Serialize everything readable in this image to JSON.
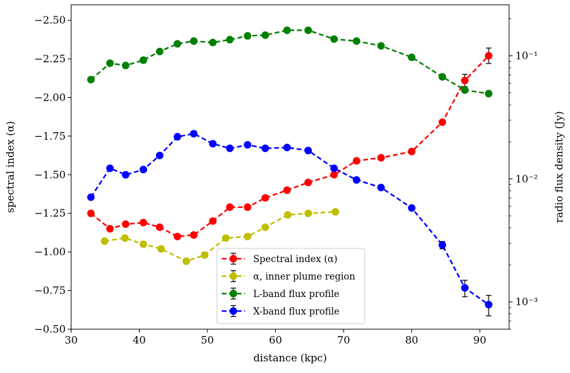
{
  "chart_data": {
    "type": "line",
    "xlabel": "distance (kpc)",
    "ylabel_left": "spectral index (α)",
    "ylabel_right": "radio flux density (Jy)",
    "x_ticks": [
      30,
      40,
      50,
      60,
      70,
      80,
      90
    ],
    "x_tick_labels": [
      "30",
      "40",
      "50",
      "60",
      "70",
      "80",
      "90"
    ],
    "xlim": [
      30,
      94.3
    ],
    "left_axis": {
      "inverted": true,
      "ylim": [
        -0.5,
        -2.6
      ],
      "ticks": [
        -0.5,
        -0.75,
        -1.0,
        -1.25,
        -1.5,
        -1.75,
        -2.0,
        -2.25,
        -2.5
      ],
      "tick_labels": [
        "−0.50",
        "−0.75",
        "−1.00",
        "−1.25",
        "−1.50",
        "−1.75",
        "−2.00",
        "−2.25",
        "−2.50"
      ]
    },
    "right_axis": {
      "scale": "log",
      "ylim": [
        0.0006,
        0.26
      ],
      "ticks": [
        0.001,
        0.01,
        0.1
      ],
      "tick_labels": [
        "10⁻³",
        "10⁻²",
        "10⁻¹"
      ]
    },
    "legend_position": "bottom-center",
    "series": [
      {
        "name": "Spectral index (α)",
        "axis": "left",
        "color": "#ff0000",
        "x": [
          32.9,
          35.7,
          38.0,
          40.6,
          43.0,
          45.6,
          48.0,
          50.8,
          53.3,
          55.9,
          58.5,
          61.7,
          64.8,
          68.6,
          71.9,
          75.5,
          80.0,
          84.5,
          87.8,
          91.3
        ],
        "y": [
          -1.25,
          -1.15,
          -1.18,
          -1.19,
          -1.16,
          -1.1,
          -1.11,
          -1.2,
          -1.29,
          -1.29,
          -1.35,
          -1.4,
          -1.45,
          -1.5,
          -1.59,
          -1.61,
          -1.65,
          -1.84,
          -2.11,
          -2.27
        ],
        "yerr": [
          0,
          0,
          0,
          0,
          0,
          0,
          0,
          0,
          0,
          0,
          0,
          0,
          0,
          0,
          0,
          0,
          0,
          0,
          0.04,
          0.05
        ]
      },
      {
        "name": "α, inner plume region",
        "axis": "left",
        "color": "#bfbf00",
        "x": [
          34.9,
          37.9,
          40.6,
          43.2,
          46.9,
          49.6,
          52.7,
          55.9,
          58.5,
          61.8,
          64.8,
          68.8
        ],
        "y": [
          -1.07,
          -1.09,
          -1.05,
          -1.02,
          -0.94,
          -0.98,
          -1.09,
          -1.1,
          -1.16,
          -1.24,
          -1.25,
          -1.26
        ],
        "yerr": [
          0,
          0,
          0,
          0,
          0,
          0,
          0,
          0,
          0,
          0,
          0,
          0
        ]
      },
      {
        "name": "L-band flux profile",
        "axis": "right",
        "color": "#008000",
        "x": [
          32.9,
          35.7,
          38.0,
          40.6,
          43.0,
          45.6,
          48.0,
          50.8,
          53.3,
          55.9,
          58.5,
          61.7,
          64.8,
          68.6,
          71.9,
          75.5,
          80.0,
          84.5,
          87.8,
          91.3
        ],
        "y": [
          0.0641,
          0.0871,
          0.0835,
          0.0922,
          0.1085,
          0.1253,
          0.1319,
          0.1284,
          0.1354,
          0.1453,
          0.1473,
          0.1614,
          0.1614,
          0.1369,
          0.1319,
          0.1206,
          0.0973,
          0.0675,
          0.0527,
          0.0493
        ],
        "yerr": [
          0,
          0,
          0,
          0,
          0,
          0,
          0,
          0,
          0,
          0,
          0,
          0,
          0,
          0,
          0,
          0,
          0,
          0,
          0,
          0
        ]
      },
      {
        "name": "X-band flux profile",
        "axis": "right",
        "color": "#0000ff",
        "x": [
          32.9,
          35.7,
          38.0,
          40.6,
          43.0,
          45.6,
          48.0,
          50.8,
          53.3,
          55.9,
          58.5,
          61.7,
          64.8,
          68.6,
          71.9,
          75.5,
          80.0,
          84.5,
          87.8,
          91.3
        ],
        "y": [
          0.0071,
          0.0122,
          0.0108,
          0.0119,
          0.0155,
          0.022,
          0.0233,
          0.0193,
          0.0177,
          0.0189,
          0.0177,
          0.018,
          0.017,
          0.0122,
          0.0098,
          0.0085,
          0.0058,
          0.0029,
          0.0013,
          0.00095
        ],
        "yerr": [
          0,
          0,
          0,
          0,
          0,
          0,
          0,
          0,
          0,
          0,
          0,
          0,
          0,
          0,
          0,
          0,
          0,
          0.0002,
          0.0002,
          0.00018
        ]
      }
    ]
  }
}
